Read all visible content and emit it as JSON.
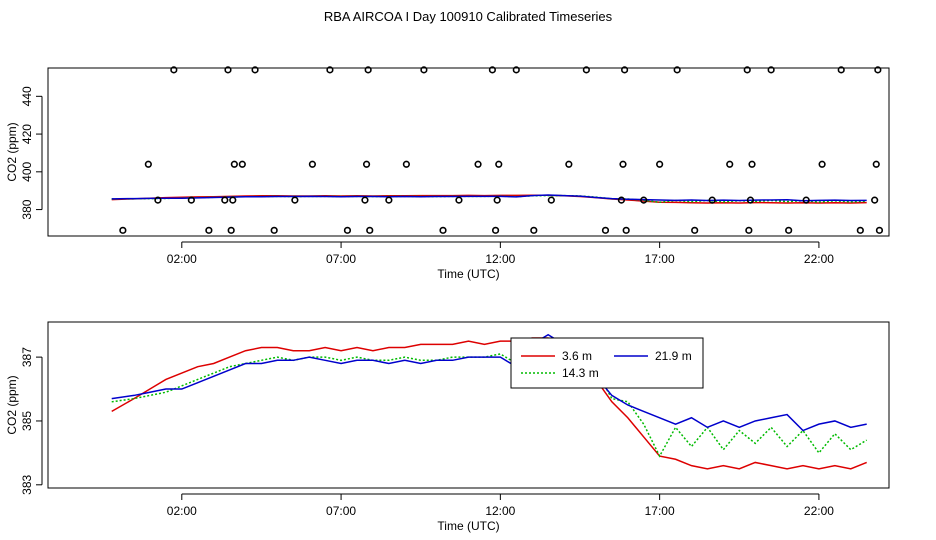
{
  "title": "RBA AIRCOA I  Day 100910  Calibrated Timeseries",
  "colors": {
    "red": "#dd0000",
    "green": "#00bb00",
    "blue": "#0000cc",
    "black": "#000000"
  },
  "chart_data": [
    {
      "type": "scatter",
      "title": "",
      "xlabel": "Time (UTC)",
      "ylabel": "CO2 (ppm)",
      "xlim": [
        -2.2,
        24.2
      ],
      "ylim": [
        366,
        455
      ],
      "xticks": [
        2,
        7,
        12,
        17,
        22
      ],
      "xtick_labels": [
        "02:00",
        "07:00",
        "12:00",
        "17:00",
        "22:00"
      ],
      "yticks": [
        380,
        400,
        420,
        440
      ],
      "ytick_labels": [
        "380",
        "400",
        "420",
        "440"
      ],
      "calibration_points": {
        "marker": "open circle",
        "color": "#000000",
        "x": [
          0.15,
          1.25,
          0.95,
          1.75,
          2.3,
          2.85,
          3.35,
          3.9,
          3.45,
          3.55,
          3.6,
          3.65,
          4.3,
          4.9,
          5.55,
          6.1,
          6.65,
          7.2,
          7.75,
          7.8,
          7.85,
          7.9,
          8.5,
          9.05,
          9.6,
          10.2,
          10.7,
          11.3,
          11.75,
          11.85,
          11.9,
          11.95,
          12.5,
          13.05,
          13.6,
          14.15,
          14.7,
          15.3,
          15.8,
          15.85,
          15.9,
          15.95,
          16.5,
          17.0,
          17.55,
          18.1,
          18.65,
          19.2,
          19.75,
          19.8,
          19.85,
          19.9,
          20.5,
          21.05,
          21.6,
          22.1,
          22.7,
          23.3,
          23.75,
          23.8,
          23.85,
          23.9
        ],
        "y": [
          369,
          385,
          404,
          454,
          385,
          369,
          385,
          404,
          454,
          369,
          385,
          404,
          454,
          369,
          385,
          404,
          454,
          369,
          385,
          404,
          454,
          369,
          385,
          404,
          454,
          369,
          385,
          404,
          454,
          369,
          385,
          404,
          454,
          369,
          385,
          404,
          454,
          369,
          385,
          404,
          454,
          369,
          385,
          404,
          454,
          369,
          385,
          404,
          454,
          369,
          385,
          404,
          454,
          369,
          385,
          404,
          454,
          369,
          385,
          404,
          454,
          369
        ]
      },
      "series": [
        {
          "name": "3.6 m",
          "color": "#dd0000",
          "line": "solid"
        },
        {
          "name": "14.3 m",
          "color": "#00bb00",
          "line": "dotted"
        },
        {
          "name": "21.9 m",
          "color": "#0000cc",
          "line": "solid"
        }
      ]
    },
    {
      "type": "line",
      "title": "",
      "xlabel": "Time (UTC)",
      "ylabel": "CO2 (ppm)",
      "xlim": [
        -2.2,
        24.2
      ],
      "ylim": [
        382.9,
        388.1
      ],
      "xticks": [
        2,
        7,
        12,
        17,
        22
      ],
      "xtick_labels": [
        "02:00",
        "07:00",
        "12:00",
        "17:00",
        "22:00"
      ],
      "yticks": [
        383,
        385,
        387
      ],
      "ytick_labels": [
        "383",
        "385",
        "387"
      ],
      "legend": {
        "position": "top-right of center",
        "entries": [
          {
            "label": "3.6 m",
            "color": "#dd0000",
            "line": "solid"
          },
          {
            "label": "21.9 m",
            "color": "#0000cc",
            "line": "solid"
          },
          {
            "label": "14.3 m",
            "color": "#00bb00",
            "line": "dotted"
          }
        ]
      },
      "series": [
        {
          "name": "3.6 m",
          "color": "#dd0000",
          "line": "solid",
          "x": [
            -0.2,
            0.5,
            1.0,
            1.5,
            2.0,
            2.5,
            3.0,
            3.5,
            4.0,
            4.5,
            5.0,
            5.5,
            6.0,
            6.5,
            7.0,
            7.5,
            8.0,
            8.5,
            9.0,
            9.5,
            10.0,
            10.5,
            11.0,
            11.5,
            12.0,
            12.5,
            13.0,
            13.5,
            14.0,
            14.5,
            15.0,
            15.5,
            16.0,
            16.5,
            17.0,
            17.5,
            18.0,
            18.5,
            19.0,
            19.5,
            20.0,
            20.5,
            21.0,
            21.5,
            22.0,
            22.5,
            23.0,
            23.5
          ],
          "y": [
            385.3,
            385.7,
            386.0,
            386.3,
            386.5,
            386.7,
            386.8,
            387.0,
            387.2,
            387.3,
            387.3,
            387.2,
            387.2,
            387.3,
            387.2,
            387.3,
            387.2,
            387.3,
            387.3,
            387.4,
            387.4,
            387.4,
            387.5,
            387.4,
            387.5,
            387.5,
            387.6,
            387.6,
            387.3,
            386.9,
            386.3,
            385.6,
            385.1,
            384.5,
            383.9,
            383.8,
            383.6,
            383.5,
            383.6,
            383.5,
            383.7,
            383.6,
            383.5,
            383.6,
            383.5,
            383.6,
            383.5,
            383.7
          ]
        },
        {
          "name": "14.3 m",
          "color": "#00bb00",
          "line": "dotted",
          "x": [
            -0.2,
            0.5,
            1.0,
            1.5,
            2.0,
            2.5,
            3.0,
            3.5,
            4.0,
            4.5,
            5.0,
            5.5,
            6.0,
            6.5,
            7.0,
            7.5,
            8.0,
            8.5,
            9.0,
            9.5,
            10.0,
            10.5,
            11.0,
            11.5,
            12.0,
            12.5,
            13.0,
            13.5,
            14.0,
            14.5,
            15.0,
            15.5,
            16.0,
            16.5,
            17.0,
            17.5,
            18.0,
            18.5,
            19.0,
            19.5,
            20.0,
            20.5,
            21.0,
            21.5,
            22.0,
            22.5,
            23.0,
            23.5
          ],
          "y": [
            385.6,
            385.7,
            385.8,
            385.9,
            386.1,
            386.3,
            386.5,
            386.7,
            386.8,
            386.9,
            387.0,
            386.9,
            387.0,
            387.0,
            386.9,
            387.0,
            386.9,
            386.9,
            387.0,
            386.9,
            386.9,
            387.0,
            387.0,
            387.0,
            387.1,
            386.8,
            387.3,
            387.4,
            387.4,
            387.2,
            386.6,
            385.7,
            385.6,
            384.9,
            383.9,
            384.8,
            384.2,
            384.8,
            384.1,
            384.7,
            384.3,
            384.8,
            384.2,
            384.7,
            384.0,
            384.6,
            384.1,
            384.4
          ]
        },
        {
          "name": "21.9 m",
          "color": "#0000cc",
          "line": "solid",
          "x": [
            -0.2,
            0.5,
            1.0,
            1.5,
            2.0,
            2.5,
            3.0,
            3.5,
            4.0,
            4.5,
            5.0,
            5.5,
            6.0,
            6.5,
            7.0,
            7.5,
            8.0,
            8.5,
            9.0,
            9.5,
            10.0,
            10.5,
            11.0,
            11.5,
            12.0,
            12.5,
            13.0,
            13.5,
            14.0,
            14.5,
            15.0,
            15.5,
            16.0,
            16.5,
            17.0,
            17.5,
            18.0,
            18.5,
            19.0,
            19.5,
            20.0,
            20.5,
            21.0,
            21.5,
            22.0,
            22.5,
            23.0,
            23.5
          ],
          "y": [
            385.7,
            385.8,
            385.9,
            386.0,
            386.0,
            386.2,
            386.4,
            386.6,
            386.8,
            386.8,
            386.9,
            386.9,
            387.0,
            386.9,
            386.8,
            386.9,
            386.9,
            386.8,
            386.9,
            386.8,
            386.9,
            386.9,
            387.0,
            387.0,
            387.0,
            386.7,
            387.4,
            387.7,
            387.4,
            387.1,
            386.4,
            385.8,
            385.5,
            385.3,
            385.1,
            384.9,
            385.1,
            384.8,
            385.0,
            384.8,
            385.0,
            385.1,
            385.2,
            384.7,
            384.9,
            385.0,
            384.8,
            384.9
          ]
        }
      ]
    }
  ]
}
